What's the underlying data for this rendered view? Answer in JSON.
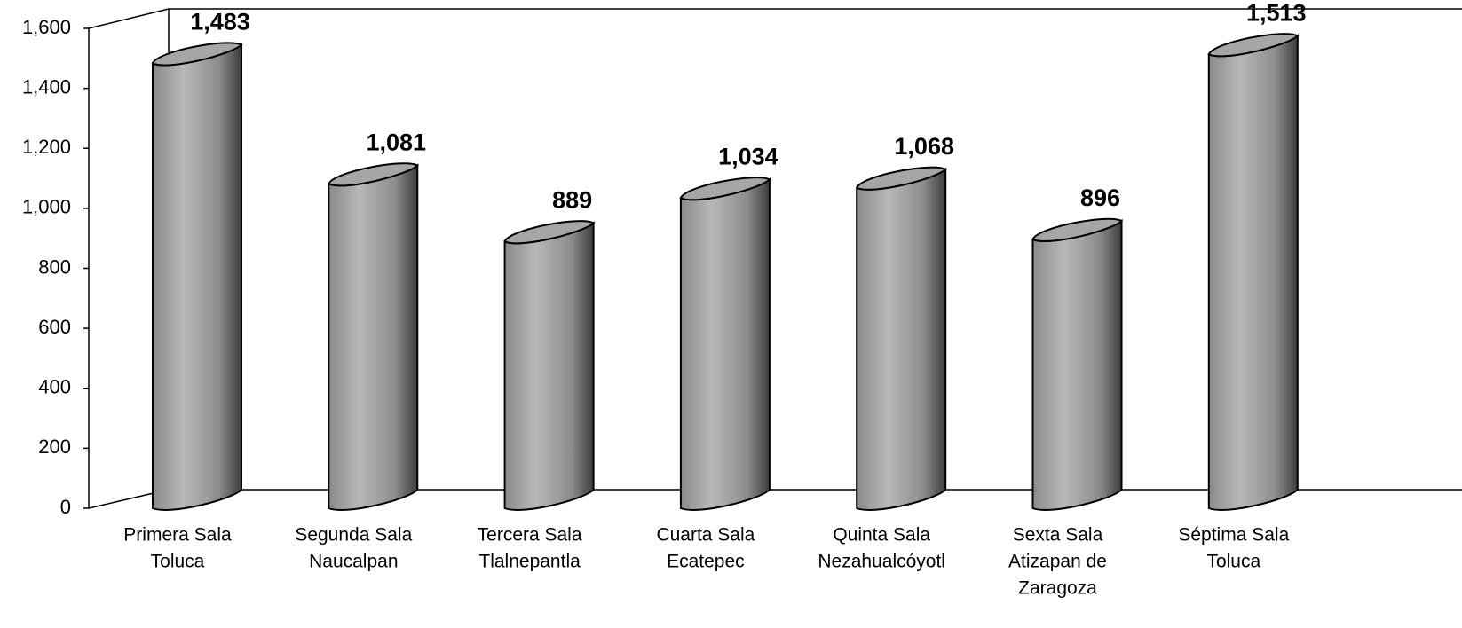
{
  "chart_data": {
    "type": "bar",
    "categories": [
      [
        "Primera Sala",
        "Toluca"
      ],
      [
        "Segunda Sala",
        "Naucalpan"
      ],
      [
        "Tercera Sala",
        "Tlalnepantla"
      ],
      [
        "Cuarta Sala",
        "Ecatepec"
      ],
      [
        "Quinta Sala",
        "Nezahualcóyotl"
      ],
      [
        "Sexta Sala",
        "Atizapan de",
        "Zaragoza"
      ],
      [
        "Séptima Sala",
        "Toluca"
      ]
    ],
    "values": [
      1483,
      1081,
      889,
      1034,
      1068,
      896,
      1513
    ],
    "value_labels": [
      "1,483",
      "1,081",
      "889",
      "1,034",
      "1,068",
      "896",
      "1,513"
    ],
    "color": "#a6a6a6",
    "ylim": [
      0,
      1600
    ],
    "yticks": [
      0,
      200,
      400,
      600,
      800,
      {
        "value": 1000,
        "label": "1,000"
      },
      {
        "value": 1200,
        "label": "1,200"
      },
      {
        "value": 1400,
        "label": "1,400"
      },
      {
        "value": 1600,
        "label": "1,600"
      }
    ]
  }
}
